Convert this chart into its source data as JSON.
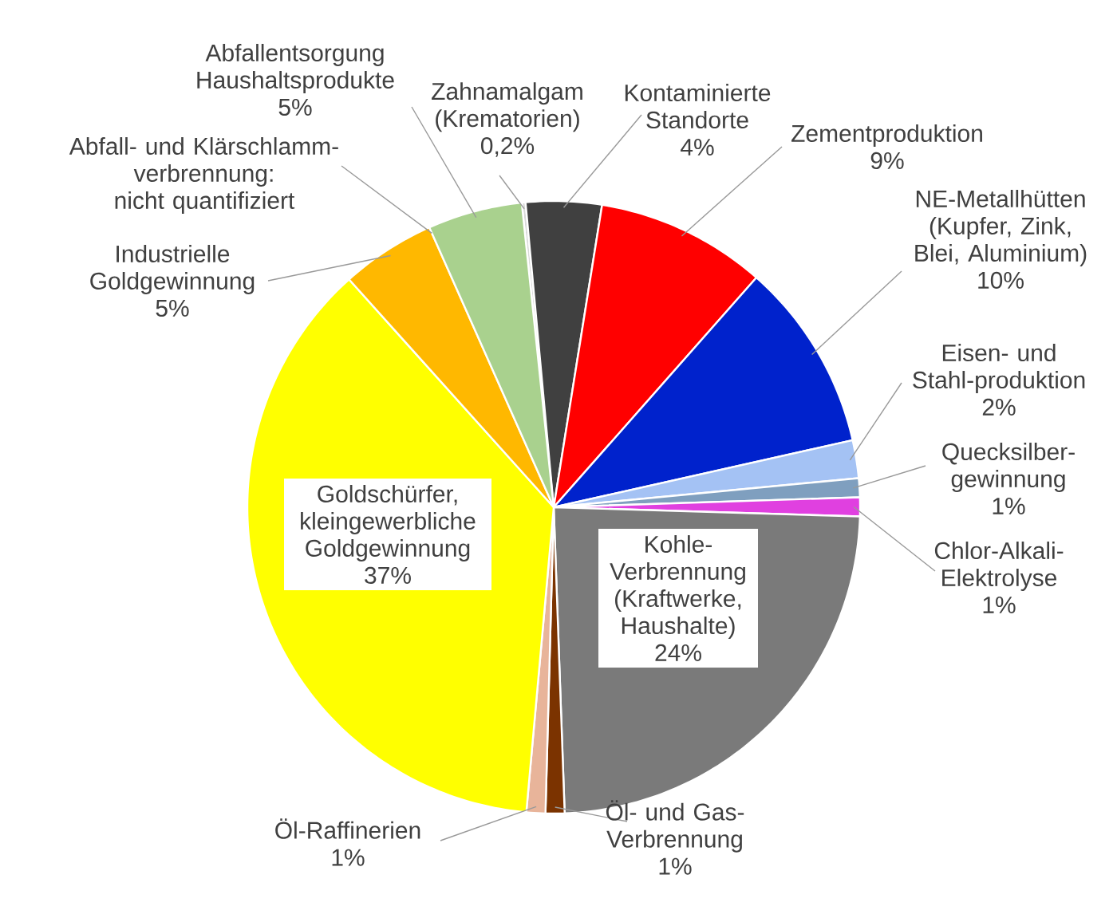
{
  "chart_data": {
    "type": "pie",
    "categories": [
      "Zahnamalgam (Krematorien)",
      "Kontaminierte Standorte",
      "Zementproduktion",
      "NE-Metallhütten (Kupfer, Zink, Blei, Aluminium)",
      "Eisen- und Stahl-produktion",
      "Quecksilber-gewinnung",
      "Chlor-Alkali-Elektrolyse",
      "Kohle-Verbrennung (Kraftwerke, Haushalte)",
      "Öl- und Gas-Verbrennung",
      "Öl-Raffinerien",
      "Goldschürfer, kleingewerbliche Goldgewinnung",
      "Industrielle Goldgewinnung",
      "Abfall- und Klärschlamm-verbrennung: nicht quantifiziert",
      "Abfallentsorgung Haushaltsprodukte"
    ],
    "values": [
      0.2,
      4,
      9,
      10,
      2,
      1,
      1,
      24,
      1,
      1,
      37,
      5,
      null,
      5
    ],
    "value_labels": [
      "0,2%",
      "4%",
      "9%",
      "10%",
      "2%",
      "1%",
      "1%",
      "24%",
      "1%",
      "1%",
      "37%",
      "5%",
      null,
      "5%"
    ],
    "colors": [
      "#d9d9d9",
      "#404040",
      "#ff0000",
      "#0022cc",
      "#a4c2f4",
      "#7f9fbf",
      "#e040e0",
      "#7a7a7a",
      "#7b3300",
      "#e8b49a",
      "#ffff00",
      "#ffb800",
      null,
      "#a9d18e"
    ]
  }
}
